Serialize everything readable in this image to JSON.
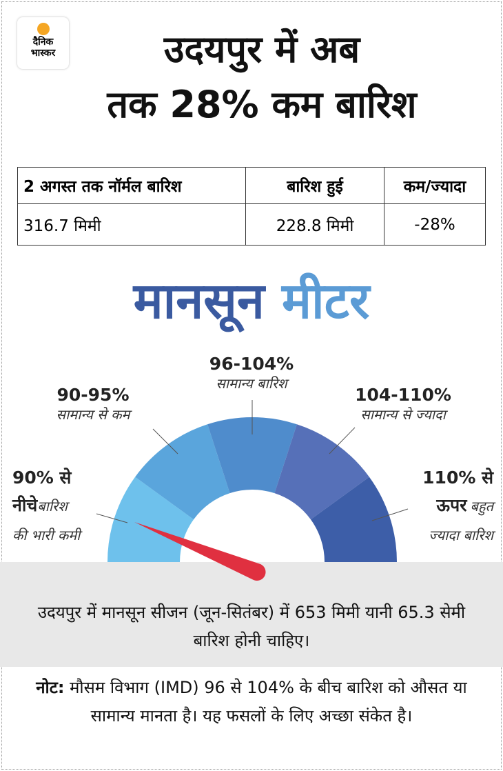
{
  "header": {
    "logo": {
      "line1": "दैनिक",
      "line2": "भास्कर"
    },
    "title_line1": "उदयपुर में अब",
    "title_line2": "तक 28% कम बारिश"
  },
  "table": {
    "headers": [
      "2 अगस्त तक नॉर्मल बारिश",
      "बारिश हुई",
      "कम/ज्यादा"
    ],
    "rows": [
      [
        "316.7 मिमी",
        "228.8 मिमी",
        "-28%"
      ]
    ]
  },
  "meter": {
    "title_part1": "मानसून",
    "title_part2": "मीटर",
    "segments": [
      {
        "range_line1": "90% से",
        "range_line2": "नीचे",
        "desc_line1": "बारिश",
        "desc_line2": "की भारी कमी"
      },
      {
        "range": "90-95%",
        "desc": "सामान्य से कम"
      },
      {
        "range": "96-104%",
        "desc": "सामान्य बारिश"
      },
      {
        "range": "104-110%",
        "desc": "सामान्य से ज्यादा"
      },
      {
        "range_line1": "110% से",
        "range_line2": "ऊपर",
        "desc_line1": "बहुत",
        "desc_line2": "ज्यादा बारिश"
      }
    ]
  },
  "info": "उदयपुर में मानसून सीजन (जून-सितंबर) में 653 मिमी यानी 65.3 सेमी बारिश होनी चाहिए।",
  "note": {
    "label": "नोट:",
    "text": "मौसम विभाग (IMD) 96 से 104% के बीच बारिश को औसत या सामान्य मानता है। यह फसलों के लिए अच्छा संकेत है।"
  }
}
